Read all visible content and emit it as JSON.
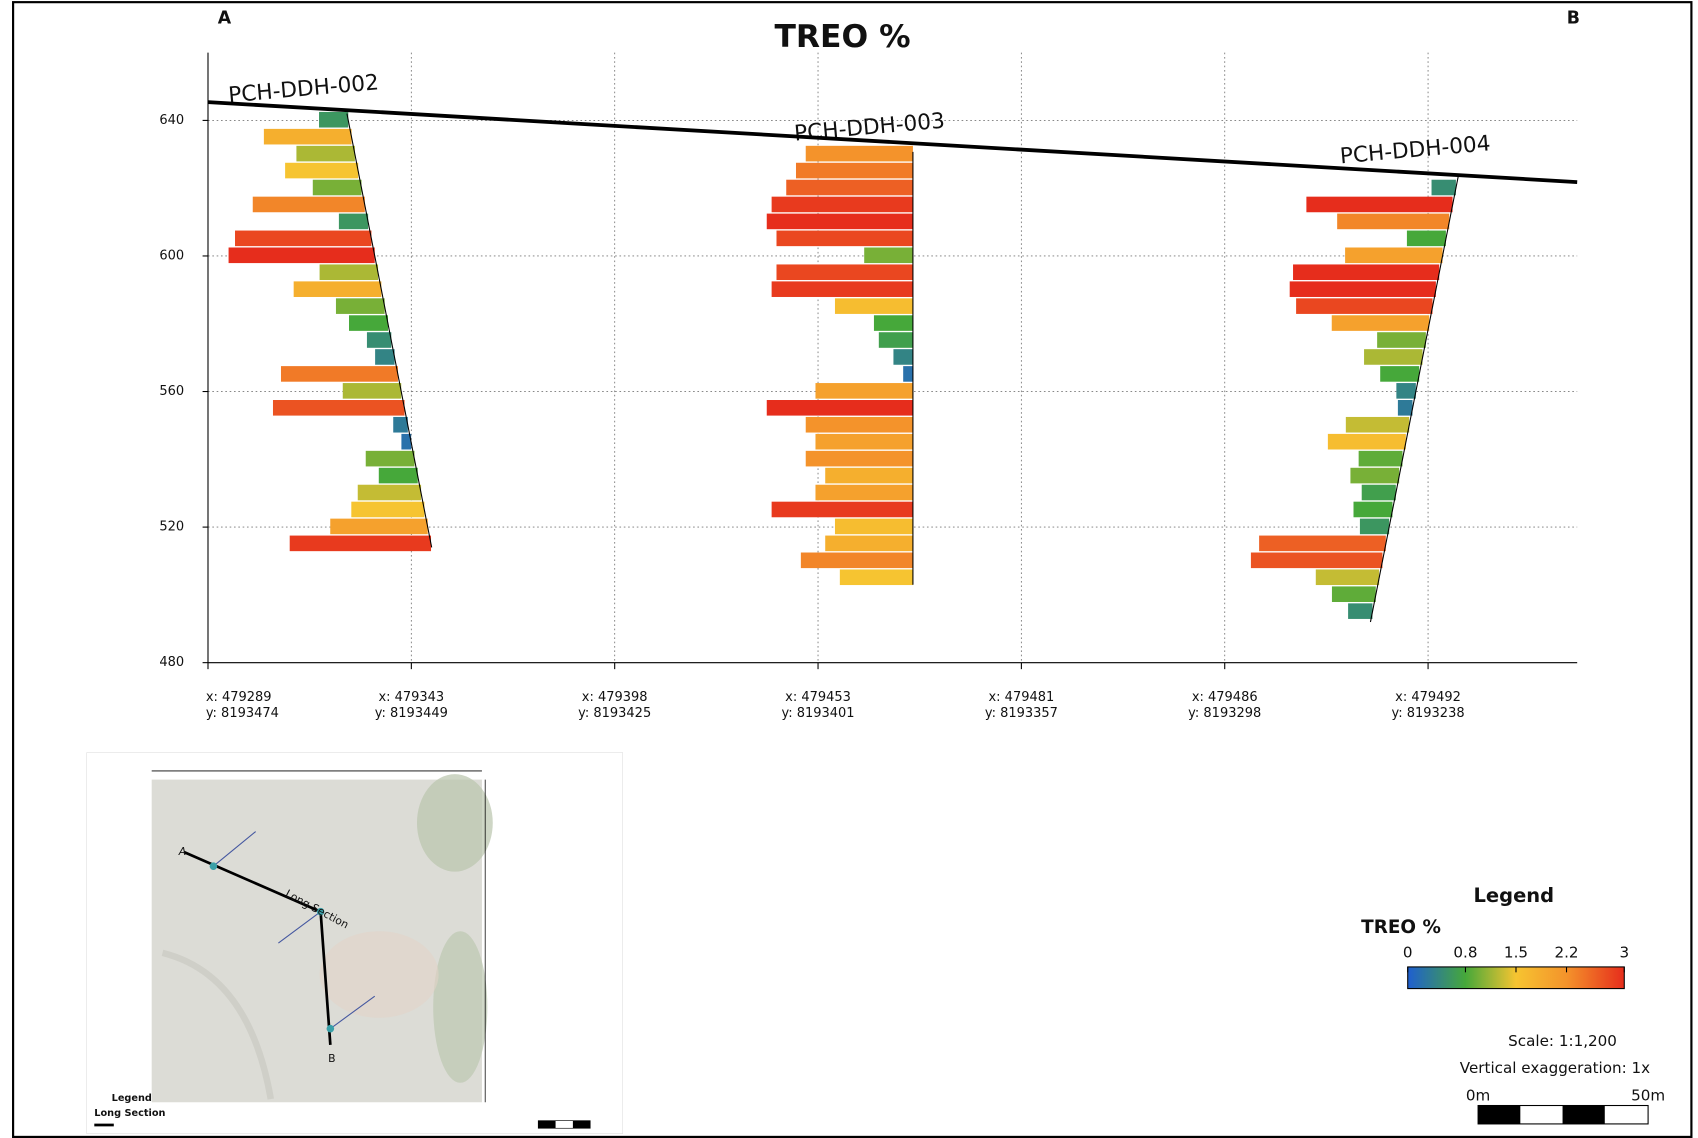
{
  "chart_data": {
    "type": "downhole-bar",
    "title": "TREO %",
    "section_ends": [
      "A",
      "B"
    ],
    "xlim": [
      0,
      404
    ],
    "xticks": [
      {
        "value": 0,
        "label": [
          "x: 479289",
          "y: 8193474"
        ]
      },
      {
        "value": 60,
        "label": [
          "x: 479343",
          "y: 8193449"
        ]
      },
      {
        "value": 120,
        "label": [
          "x: 479398",
          "y: 8193425"
        ]
      },
      {
        "value": 180,
        "label": [
          "x: 479453",
          "y: 8193401"
        ]
      },
      {
        "value": 240,
        "label": [
          "x: 479481",
          "y: 8193357"
        ]
      },
      {
        "value": 300,
        "label": [
          "x: 479486",
          "y: 8193298"
        ]
      },
      {
        "value": 360,
        "label": [
          "x: 479492",
          "y: 8193238"
        ]
      }
    ],
    "ylim": [
      480,
      660
    ],
    "yticks": [
      480,
      520,
      560,
      600,
      640
    ],
    "grid": true,
    "topography": {
      "x": [
        0,
        404
      ],
      "elevations": [
        645.4,
        621.8
      ],
      "color": "#000000"
    },
    "holes": [
      {
        "name": "PCH-DDH-002",
        "collar": [
          41,
          642
        ],
        "end": [
          66,
          514
        ],
        "elevations": [
          640,
          635,
          630,
          625,
          620,
          615,
          610,
          605,
          600,
          595,
          590,
          585,
          580,
          575,
          570,
          565,
          560,
          555,
          550,
          545,
          540,
          535,
          530,
          525,
          520,
          515
        ],
        "values": [
          0.6,
          1.8,
          1.2,
          1.5,
          1.0,
          2.3,
          0.6,
          2.8,
          3.0,
          1.2,
          1.8,
          1.0,
          0.8,
          0.5,
          0.4,
          2.4,
          1.2,
          2.7,
          0.3,
          0.2,
          1.0,
          0.8,
          1.3,
          1.5,
          2.0,
          2.9
        ]
      },
      {
        "name": "PCH-DDH-003",
        "collar": [
          208,
          630.7
        ],
        "end": [
          208,
          503
        ],
        "elevations": [
          630,
          625,
          620,
          615,
          610,
          605,
          600,
          595,
          590,
          585,
          580,
          575,
          570,
          565,
          560,
          555,
          550,
          545,
          540,
          535,
          530,
          525,
          520,
          515,
          510,
          505
        ],
        "values": [
          2.2,
          2.4,
          2.6,
          2.9,
          3.0,
          2.8,
          1.0,
          2.8,
          2.9,
          1.6,
          0.8,
          0.7,
          0.4,
          0.2,
          2.0,
          3.0,
          2.2,
          2.0,
          2.2,
          1.8,
          2.0,
          2.9,
          1.6,
          1.8,
          2.3,
          1.5
        ]
      },
      {
        "name": "PCH-DDH-004",
        "collar": [
          369,
          624
        ],
        "end": [
          343,
          492
        ],
        "elevations": [
          620,
          615,
          610,
          605,
          600,
          595,
          590,
          585,
          580,
          575,
          570,
          565,
          560,
          555,
          550,
          545,
          540,
          535,
          530,
          525,
          520,
          515,
          510,
          505,
          500,
          495
        ],
        "values": [
          0.5,
          3.0,
          2.3,
          0.8,
          2.0,
          3.0,
          3.0,
          2.8,
          2.0,
          1.0,
          1.2,
          0.8,
          0.4,
          0.3,
          1.3,
          1.6,
          0.9,
          1.0,
          0.7,
          0.8,
          0.6,
          2.6,
          2.7,
          1.3,
          0.9,
          0.5
        ]
      }
    ],
    "legend": {
      "title": "Legend",
      "label": "TREO %",
      "ticks": [
        0,
        0.8,
        1.5,
        2.2,
        3
      ],
      "colors": [
        "#1f5fd0",
        "#46a83a",
        "#f6c431",
        "#f4932b",
        "#e62d1c"
      ]
    },
    "scale": "Scale: 1:1,200",
    "vertical_exaggeration": "Vertical exaggeration: 1x",
    "scale_bar": [
      "0m",
      "50m"
    ]
  },
  "inset_map": {
    "ends": [
      "A",
      "B"
    ],
    "line_label": "Long Section",
    "legend_title": "Legend",
    "legend_entry": "Long Section"
  }
}
